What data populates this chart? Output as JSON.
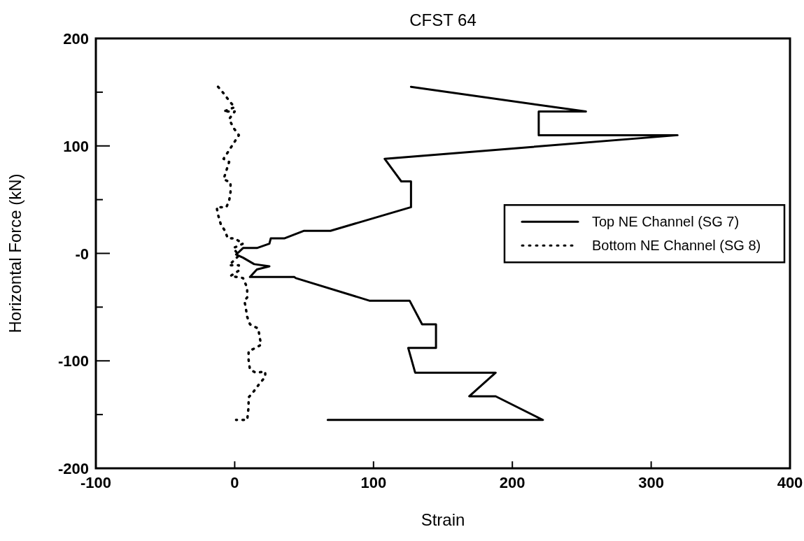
{
  "chart_data": {
    "type": "line",
    "title": "CFST 64",
    "xlabel": "Strain",
    "ylabel": "Horizontal Force (kN)",
    "xlim": [
      -100,
      400
    ],
    "xticks": [
      -100,
      0,
      100,
      200,
      300,
      400
    ],
    "ylim": [
      -200,
      200
    ],
    "yticks": [
      -200,
      {
        "value": -150,
        "label": null
      },
      -100,
      {
        "value": -50,
        "label": null
      },
      {
        "value": 0,
        "label": "-0"
      },
      {
        "value": 50,
        "label": null
      },
      100,
      {
        "value": 150,
        "label": null
      },
      200
    ],
    "legend": "right",
    "grid": false,
    "series": [
      {
        "name": "Top NE Channel (SG 7)",
        "color": "#000000",
        "line_style": "solid",
        "x": [
          127,
          253,
          219,
          219,
          319,
          108,
          120,
          127,
          127,
          69,
          50,
          36,
          26,
          25,
          16,
          6,
          2,
          1,
          6,
          14,
          25,
          16,
          11,
          43,
          44,
          97,
          126,
          135,
          145,
          145,
          125,
          130,
          188,
          169,
          188,
          222,
          67
        ],
        "values": [
          155,
          132,
          132,
          110,
          110,
          88,
          67,
          67,
          43,
          21,
          21,
          14,
          14,
          9,
          5,
          5,
          0,
          -1,
          -4,
          -10,
          -12,
          -15,
          -22,
          -22,
          -23,
          -44,
          -44,
          -66,
          -66,
          -88,
          -88,
          -111,
          -111,
          -133,
          -133,
          -155,
          -155
        ]
      },
      {
        "name": "Bottom NE Channel (SG 8)",
        "color": "#000000",
        "line_style": "dotted",
        "x": [
          -12,
          -8,
          -4,
          0,
          -8,
          0,
          -4,
          -1,
          3,
          -1,
          -5,
          -8,
          -4,
          -6,
          -8,
          -3,
          -3,
          -4,
          -6,
          -13,
          -12,
          -10,
          -7,
          -5,
          0,
          6,
          -1,
          3,
          -4,
          3,
          3,
          -3,
          6,
          9,
          9,
          7,
          8,
          9,
          11,
          17,
          18,
          19,
          15,
          10,
          10,
          11,
          15,
          22,
          22,
          18,
          14,
          10,
          10,
          9,
          1
        ],
        "values": [
          155,
          149,
          142,
          136,
          132,
          132,
          125,
          117,
          110,
          102,
          94,
          88,
          85,
          77,
          69,
          66,
          57,
          49,
          43,
          43,
          36,
          27,
          21,
          14,
          14,
          9,
          5,
          -2,
          -11,
          -11,
          -16,
          -21,
          -23,
          -32,
          -41,
          -44,
          -51,
          -59,
          -66,
          -70,
          -78,
          -85,
          -88,
          -91,
          -99,
          -108,
          -111,
          -110,
          -115,
          -121,
          -128,
          -134,
          -143,
          -155,
          -155
        ]
      }
    ]
  }
}
